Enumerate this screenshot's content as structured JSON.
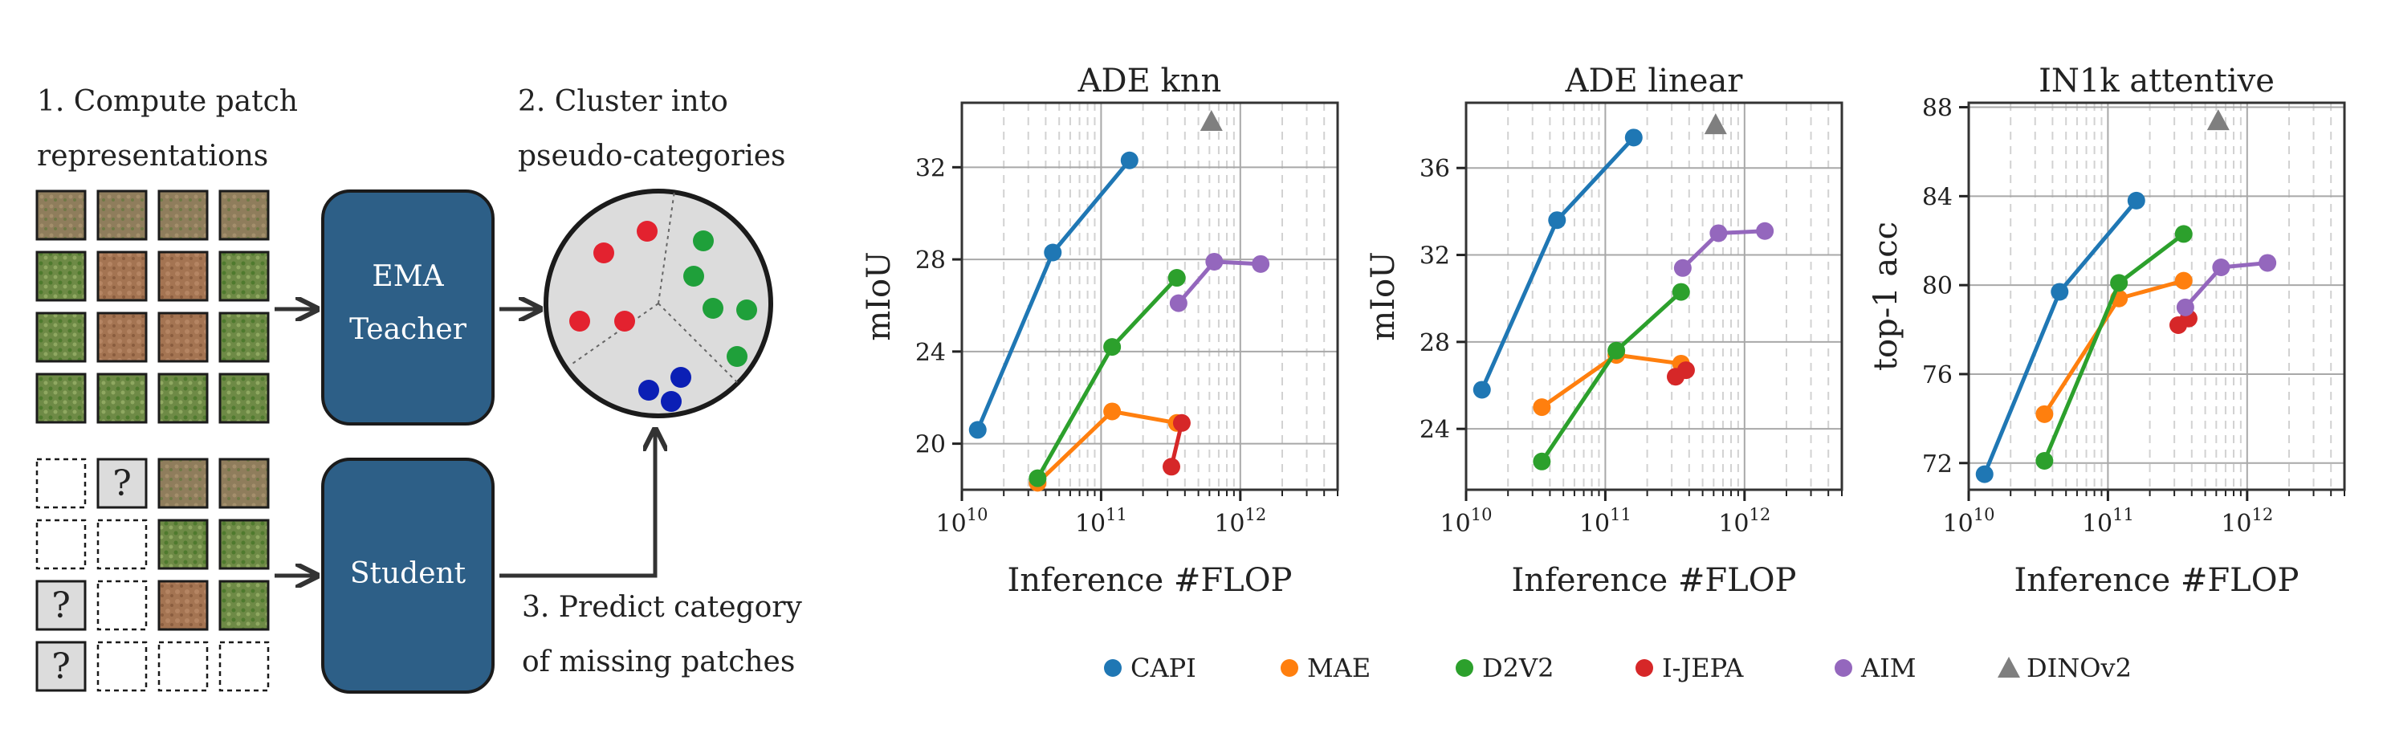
{
  "diagram": {
    "step1": [
      "1. Compute patch",
      "representations"
    ],
    "step2": [
      "2. Cluster into",
      "pseudo-categories"
    ],
    "step3": [
      "3. Predict category",
      "of missing patches"
    ],
    "teacher_label": [
      "EMA",
      "Teacher"
    ],
    "student_label": "Student",
    "question_mark": "?"
  },
  "colors": {
    "CAPI": "#1f77b4",
    "MAE": "#ff7f0e",
    "D2V2": "#2ca02c",
    "I-JEPA": "#d62728",
    "AIM": "#9467bd",
    "DINOv2": "#7f7f7f",
    "box": "#2d5f87"
  },
  "chart_data": [
    {
      "type": "line",
      "title": "ADE knn",
      "xlabel": "Inference #FLOP",
      "ylabel": "mIoU",
      "xscale": "log",
      "xlim": [
        10000000000.0,
        5000000000000.0
      ],
      "ylim": [
        18,
        34.8
      ],
      "yticks": [
        20,
        24,
        28,
        32
      ],
      "grid": true,
      "series": [
        {
          "name": "CAPI",
          "x": [
            13000000000.0,
            45000000000.0,
            160000000000.0
          ],
          "y": [
            20.6,
            28.3,
            32.3
          ]
        },
        {
          "name": "MAE",
          "x": [
            35000000000.0,
            120000000000.0,
            350000000000.0
          ],
          "y": [
            18.3,
            21.4,
            20.9
          ]
        },
        {
          "name": "D2V2",
          "x": [
            35000000000.0,
            120000000000.0,
            350000000000.0
          ],
          "y": [
            18.5,
            24.2,
            27.2
          ]
        },
        {
          "name": "I-JEPA",
          "x": [
            320000000000.0,
            380000000000.0
          ],
          "y": [
            19.0,
            20.9
          ]
        },
        {
          "name": "AIM",
          "x": [
            360000000000.0,
            650000000000.0,
            1400000000000.0
          ],
          "y": [
            26.1,
            27.9,
            27.8
          ]
        },
        {
          "name": "DINOv2",
          "x": [
            620000000000.0
          ],
          "y": [
            34.0
          ],
          "marker": "triangle"
        }
      ]
    },
    {
      "type": "line",
      "title": "ADE linear",
      "xlabel": "Inference #FLOP",
      "ylabel": "mIoU",
      "xscale": "log",
      "xlim": [
        10000000000.0,
        5000000000000.0
      ],
      "ylim": [
        21.2,
        39.0
      ],
      "yticks": [
        24,
        28,
        32,
        36
      ],
      "grid": true,
      "series": [
        {
          "name": "CAPI",
          "x": [
            13000000000.0,
            45000000000.0,
            160000000000.0
          ],
          "y": [
            25.8,
            33.6,
            37.4
          ]
        },
        {
          "name": "MAE",
          "x": [
            35000000000.0,
            120000000000.0,
            350000000000.0
          ],
          "y": [
            25.0,
            27.4,
            27.0
          ]
        },
        {
          "name": "D2V2",
          "x": [
            35000000000.0,
            120000000000.0,
            350000000000.0
          ],
          "y": [
            22.5,
            27.6,
            30.3
          ]
        },
        {
          "name": "I-JEPA",
          "x": [
            320000000000.0,
            380000000000.0
          ],
          "y": [
            26.4,
            26.7
          ]
        },
        {
          "name": "AIM",
          "x": [
            360000000000.0,
            650000000000.0,
            1400000000000.0
          ],
          "y": [
            31.4,
            33.0,
            33.1
          ]
        },
        {
          "name": "DINOv2",
          "x": [
            620000000000.0
          ],
          "y": [
            38.0
          ],
          "marker": "triangle"
        }
      ]
    },
    {
      "type": "line",
      "title": "IN1k attentive",
      "xlabel": "Inference #FLOP",
      "ylabel": "top-1 acc",
      "xscale": "log",
      "xlim": [
        10000000000.0,
        5000000000000.0
      ],
      "ylim": [
        70.8,
        88.2
      ],
      "yticks": [
        72,
        76,
        80,
        84,
        88
      ],
      "grid": true,
      "series": [
        {
          "name": "CAPI",
          "x": [
            13000000000.0,
            45000000000.0,
            160000000000.0
          ],
          "y": [
            71.5,
            79.7,
            83.8
          ]
        },
        {
          "name": "MAE",
          "x": [
            35000000000.0,
            120000000000.0,
            350000000000.0
          ],
          "y": [
            74.2,
            79.4,
            80.2
          ]
        },
        {
          "name": "D2V2",
          "x": [
            35000000000.0,
            120000000000.0,
            350000000000.0
          ],
          "y": [
            72.1,
            80.1,
            82.3
          ]
        },
        {
          "name": "I-JEPA",
          "x": [
            320000000000.0,
            380000000000.0
          ],
          "y": [
            78.2,
            78.5
          ]
        },
        {
          "name": "AIM",
          "x": [
            360000000000.0,
            650000000000.0,
            1400000000000.0
          ],
          "y": [
            79.0,
            80.8,
            81.0
          ]
        },
        {
          "name": "DINOv2",
          "x": [
            620000000000.0
          ],
          "y": [
            87.4
          ],
          "marker": "triangle"
        }
      ]
    }
  ],
  "legend": [
    "CAPI",
    "MAE",
    "D2V2",
    "I-JEPA",
    "AIM",
    "DINOv2"
  ]
}
